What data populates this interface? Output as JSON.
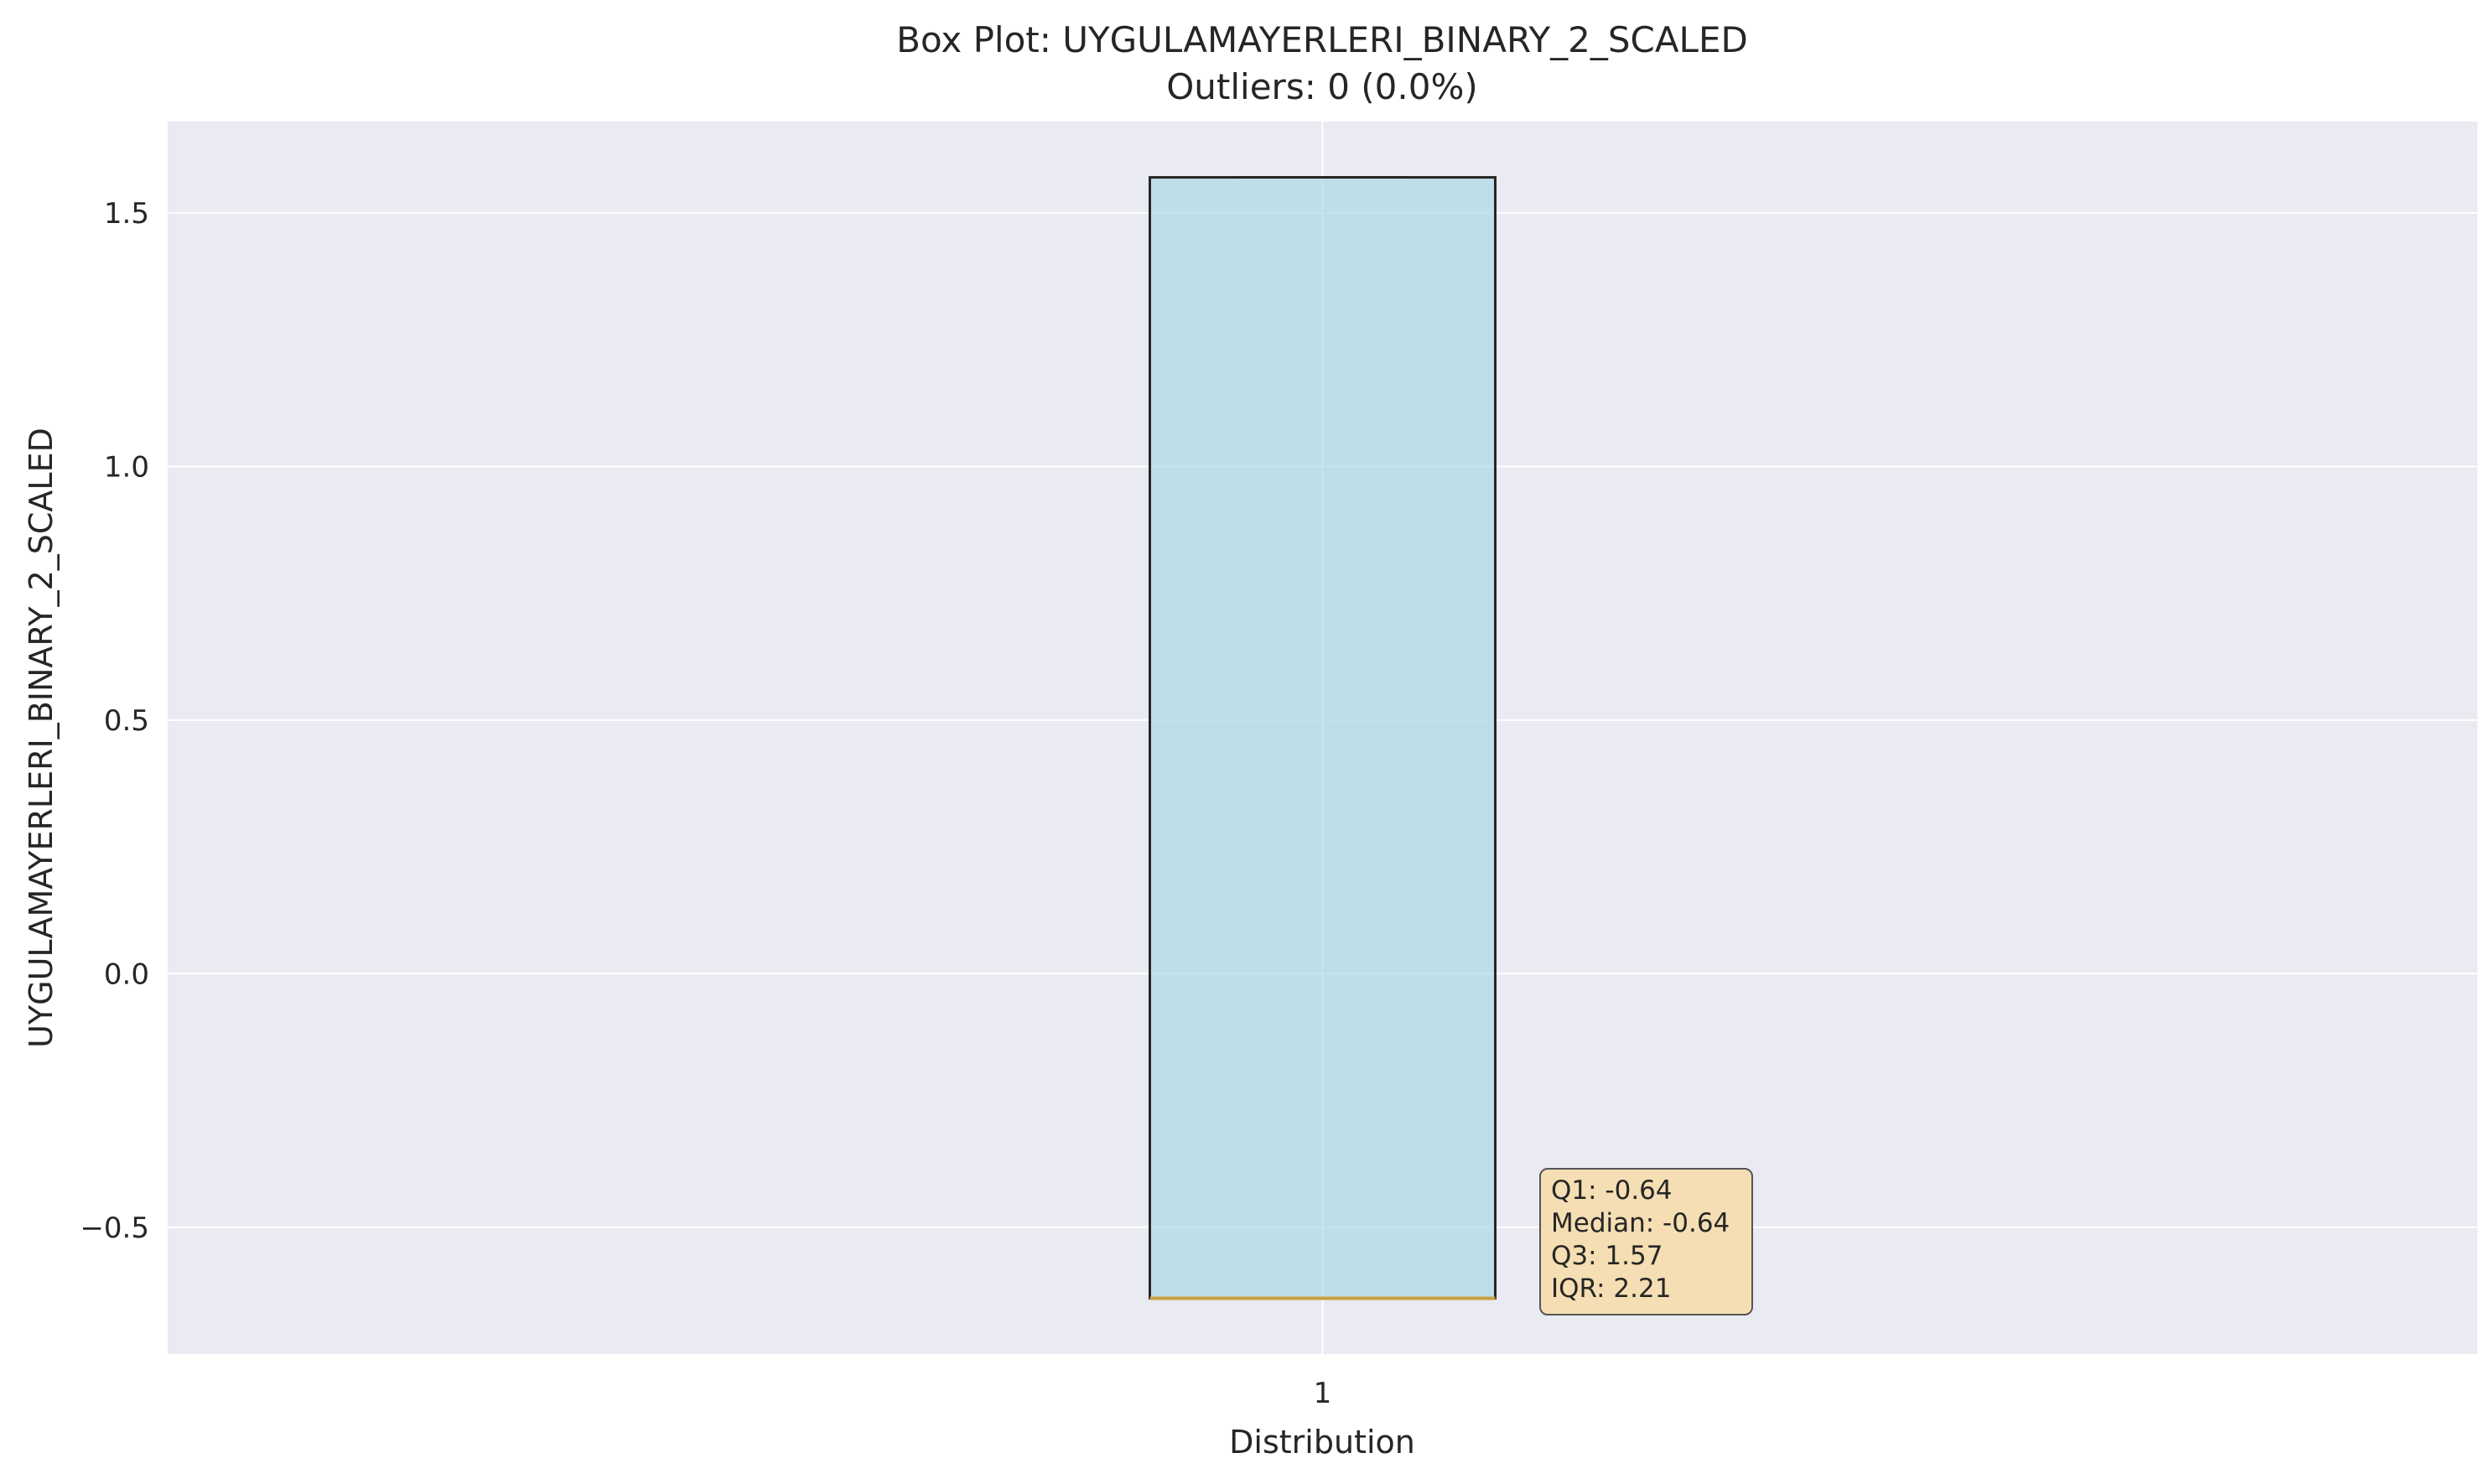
{
  "chart_data": {
    "type": "box",
    "title": "Box Plot: UYGULAMAYERLERI_BINARY_2_SCALED",
    "subtitle": "Outliers: 0 (0.0%)",
    "xlabel": "Distribution",
    "ylabel": "UYGULAMAYERLERI_BINARY_2_SCALED",
    "categories": [
      "1"
    ],
    "ylim": [
      -0.75,
      1.68
    ],
    "yticks": [
      1.5,
      1.0,
      0.5,
      0.0,
      -0.5
    ],
    "ytick_labels": [
      "1.5",
      "1.0",
      "0.5",
      "0.0",
      "−0.5"
    ],
    "grid": true,
    "box": {
      "q1": -0.64,
      "median": -0.64,
      "q3": 1.57,
      "whisker_low": -0.64,
      "whisker_high": 1.57,
      "outliers": []
    },
    "stats_lines": [
      "Q1: -0.64",
      "Median: -0.64",
      "Q3: 1.57",
      "IQR: 2.21"
    ],
    "colors": {
      "plot_background": "#eaeaf2",
      "box_fill": "#add8e6",
      "box_edge": "#262626",
      "median_line": "#c8a040",
      "annotation_fill": "#f5deb3",
      "grid": "#ffffff"
    }
  }
}
